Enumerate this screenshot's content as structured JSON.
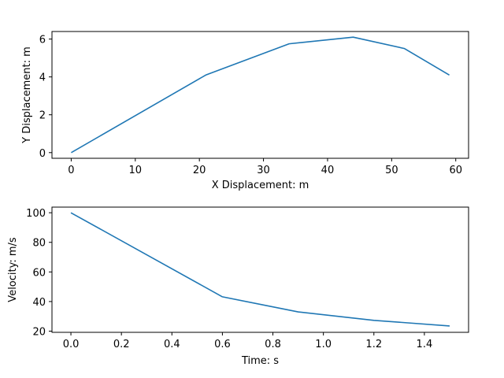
{
  "chart_data": [
    {
      "type": "line",
      "xlabel": "X Displacement: m",
      "ylabel": "Y Displacement: m",
      "xlim": [
        -3,
        62
      ],
      "ylim": [
        -0.3,
        6.4
      ],
      "xticks": [
        0,
        10,
        20,
        30,
        40,
        50,
        60
      ],
      "yticks": [
        0,
        2,
        4,
        6
      ],
      "grid": false,
      "series": [
        {
          "color": "#1f77b4",
          "x": [
            0,
            21,
            34,
            44,
            52,
            59
          ],
          "y": [
            0,
            4.1,
            5.75,
            6.1,
            5.5,
            4.1
          ]
        }
      ]
    },
    {
      "type": "line",
      "xlabel": "Time: s",
      "ylabel": "Velocity: m/s",
      "xlim": [
        -0.075,
        1.575
      ],
      "ylim": [
        19.2,
        103.8
      ],
      "xticks": [
        0.0,
        0.2,
        0.4,
        0.6,
        0.8,
        1.0,
        1.2,
        1.4
      ],
      "xtick_labels": [
        "0.0",
        "0.2",
        "0.4",
        "0.6",
        "0.8",
        "1.0",
        "1.2",
        "1.4"
      ],
      "yticks": [
        20,
        40,
        60,
        80,
        100
      ],
      "grid": false,
      "series": [
        {
          "color": "#1f77b4",
          "x": [
            0.0,
            0.6,
            0.9,
            1.2,
            1.5
          ],
          "y": [
            100,
            43.2,
            33,
            27.3,
            23.5
          ]
        }
      ]
    }
  ]
}
